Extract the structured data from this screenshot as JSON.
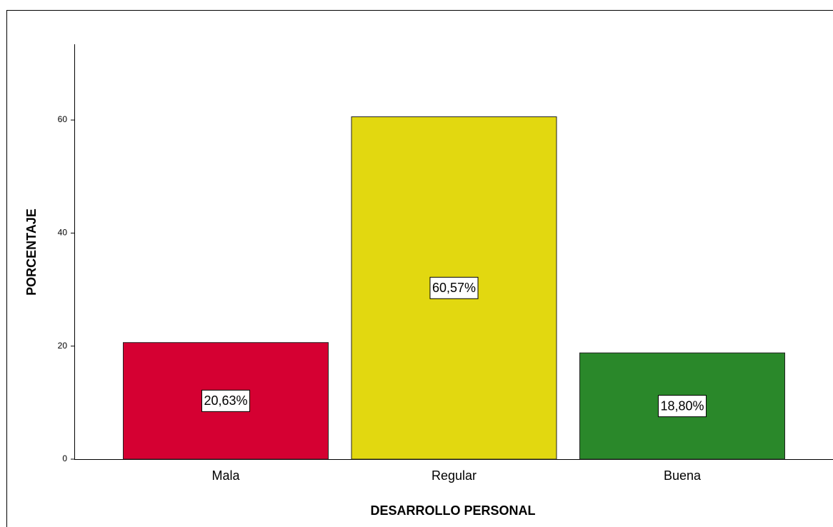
{
  "chart_data": {
    "type": "bar",
    "x_label": "DESARROLLO PERSONAL",
    "y_label": "PORCENTAJE",
    "categories": [
      "Mala",
      "Regular",
      "Buena"
    ],
    "values": [
      20.63,
      60.57,
      18.8
    ],
    "value_labels": [
      "20,63%",
      "60,57%",
      "18,80%"
    ],
    "colors": [
      "#d50032",
      "#e2d810",
      "#2a882a"
    ],
    "ylim": [
      0,
      73.4
    ],
    "yticks": [
      0,
      20,
      40,
      60
    ],
    "grid": false
  }
}
